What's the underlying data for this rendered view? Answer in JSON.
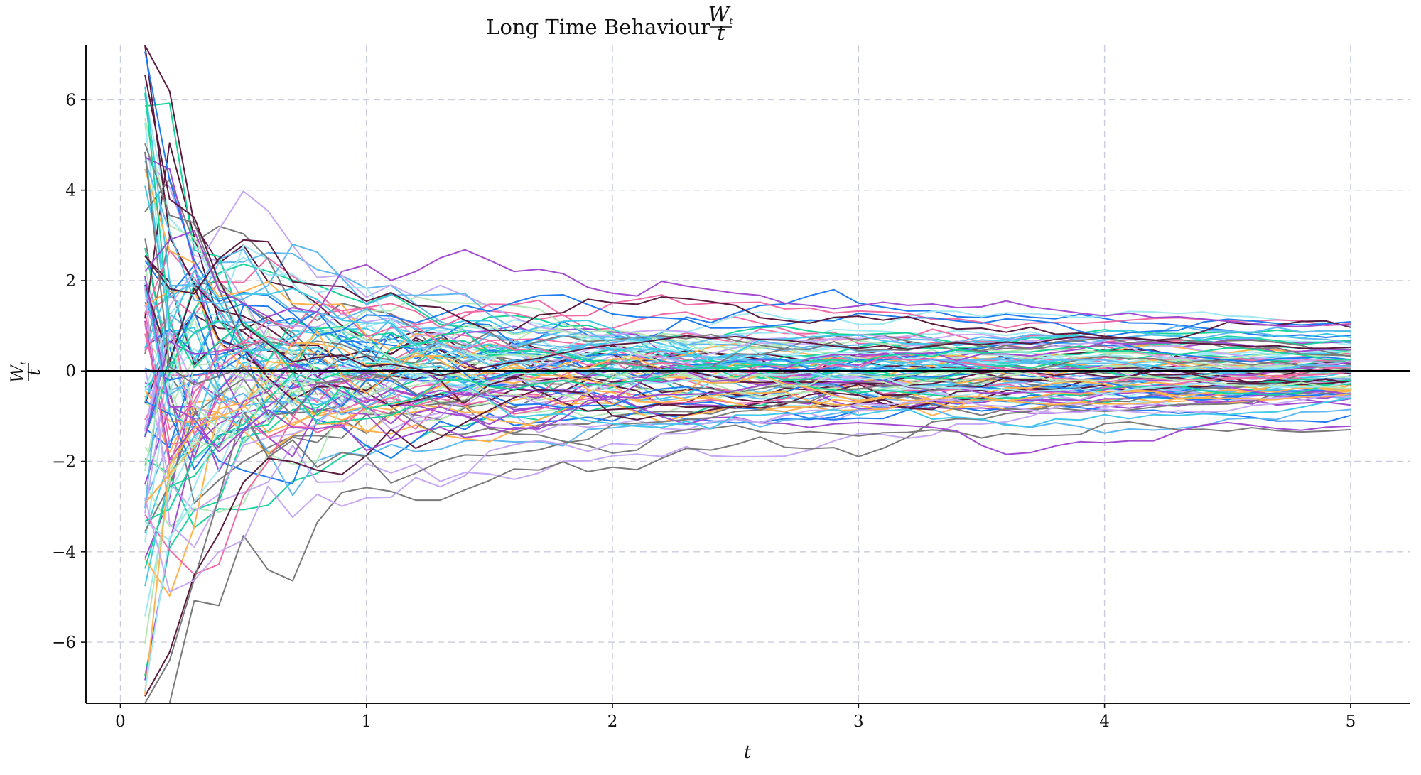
{
  "chart_data": {
    "type": "line",
    "title": {
      "text": "Long Time Behaviour ",
      "frac_numerator": "W",
      "frac_numerator_sub": "t",
      "frac_denominator": "t"
    },
    "xlabel": "t",
    "ylabel": {
      "numerator": "W",
      "numerator_sub": "t",
      "denominator": "t"
    },
    "xlim": [
      -0.14,
      5.24
    ],
    "ylim": [
      -7.35,
      7.2
    ],
    "x_ticks": [
      0,
      1,
      2,
      3,
      4,
      5
    ],
    "x_tick_labels": [
      "0",
      "1",
      "2",
      "3",
      "4",
      "5"
    ],
    "y_ticks": [
      -6,
      -4,
      -2,
      0,
      2,
      4,
      6
    ],
    "y_tick_labels": [
      "−6",
      "−4",
      "−2",
      "0",
      "2",
      "4",
      "6"
    ],
    "grid": true,
    "horizontal_reference": 0,
    "x": [
      0.1,
      0.2,
      0.3,
      0.4,
      0.5,
      0.6,
      0.7,
      0.8,
      0.9,
      1.0,
      1.1,
      1.2,
      1.3,
      1.4,
      1.5,
      1.6,
      1.7,
      1.8,
      1.9,
      2.0,
      2.1,
      2.2,
      2.3,
      2.4,
      2.5,
      2.6,
      2.7,
      2.8,
      2.9,
      3.0,
      3.1,
      3.2,
      3.3,
      3.4,
      3.5,
      3.6,
      3.7,
      3.8,
      3.9,
      4.0,
      4.1,
      4.2,
      4.3,
      4.4,
      4.5,
      4.6,
      4.7,
      4.8,
      4.9,
      5.0
    ],
    "series_count": 100,
    "colors": [
      "#a24bd1",
      "#5b1a3f",
      "#7a7a7a",
      "#19d49a",
      "#f06aa6",
      "#1f7bf0",
      "#ffb24d",
      "#9fe8f4",
      "#5fb8f0",
      "#c6a8f5",
      "#b4e8b4",
      "#42c8e8"
    ],
    "series": [
      {
        "values": [
          2.2,
          2.9,
          3.1,
          1.8,
          1.5,
          1.2,
          1.4,
          1.3,
          2.2,
          2.35,
          2.0,
          2.2,
          2.5,
          2.68,
          2.45,
          2.2,
          2.25,
          2.15,
          1.85,
          1.72,
          1.66,
          1.98,
          1.88,
          1.8,
          1.72,
          1.67,
          1.5,
          1.45,
          1.38,
          1.44,
          1.52,
          1.45,
          1.48,
          1.4,
          1.42,
          1.55,
          1.42,
          1.35,
          1.28,
          1.22,
          1.28,
          1.18,
          1.2,
          1.15,
          1.1,
          1.05,
          1.0,
          0.98,
          1.02,
          1.02
        ]
      },
      {
        "values": [
          6.55,
          3.8,
          3.4,
          2.0,
          1.0,
          0.6,
          0.2,
          0.3,
          0.35,
          0.1,
          0.15,
          0.05,
          -0.1,
          0.0,
          0.1,
          0.2,
          0.28,
          0.4,
          0.5,
          0.58,
          0.62,
          0.7,
          0.78,
          0.72,
          0.76,
          0.7,
          0.68,
          0.62,
          0.55,
          0.5,
          0.56,
          0.48,
          0.55,
          0.62,
          0.58,
          0.64,
          0.6,
          0.7,
          0.76,
          0.72,
          0.74,
          0.68,
          0.62,
          0.6,
          0.58,
          0.54,
          0.56,
          0.5,
          0.5,
          0.52
        ]
      }
    ]
  }
}
